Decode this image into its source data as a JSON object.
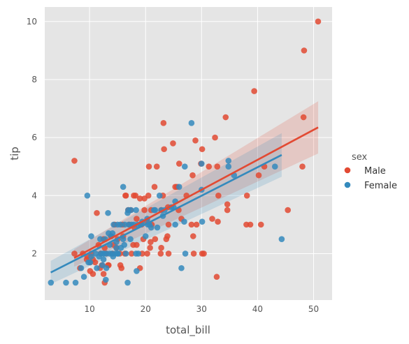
{
  "chart_data": {
    "type": "scatter",
    "style": "ggplot",
    "xlabel": "total_bill",
    "ylabel": "tip",
    "xlim": [
      2.0,
      53.3
    ],
    "ylim": [
      0.4,
      10.5
    ],
    "xticks": [
      10,
      20,
      30,
      40,
      50
    ],
    "yticks": [
      2,
      4,
      6,
      8,
      10
    ],
    "grid": true,
    "legend": {
      "title": "sex",
      "placement": "right-outside",
      "entries": [
        "Male",
        "Female"
      ]
    },
    "colors": {
      "Male": "#E24A33",
      "Female": "#348ABD",
      "panel": "#E5E5E5",
      "grid": "#FFFFFF",
      "text": "#555555"
    },
    "series": [
      {
        "name": "Male",
        "points": [
          [
            50.8,
            10.0
          ],
          [
            48.3,
            9.0
          ],
          [
            39.4,
            7.6
          ],
          [
            48.2,
            6.7
          ],
          [
            34.3,
            6.7
          ],
          [
            23.2,
            6.5
          ],
          [
            28.9,
            5.9
          ],
          [
            24.9,
            5.8
          ],
          [
            32.4,
            6.0
          ],
          [
            23.3,
            5.6
          ],
          [
            30.1,
            5.6
          ],
          [
            7.3,
            5.2
          ],
          [
            26.0,
            5.1
          ],
          [
            29.9,
            5.1
          ],
          [
            20.6,
            5.0
          ],
          [
            22.0,
            5.0
          ],
          [
            31.3,
            5.0
          ],
          [
            32.8,
            5.0
          ],
          [
            41.2,
            5.0
          ],
          [
            48.0,
            5.0
          ],
          [
            28.4,
            4.7
          ],
          [
            25.3,
            4.3
          ],
          [
            25.6,
            4.3
          ],
          [
            21.6,
            4.3
          ],
          [
            16.4,
            4.0
          ],
          [
            17.9,
            4.0
          ],
          [
            18.2,
            4.0
          ],
          [
            20.5,
            4.0
          ],
          [
            23.1,
            4.0
          ],
          [
            16.5,
            4.0
          ],
          [
            27.3,
            4.0
          ],
          [
            33.0,
            4.0
          ],
          [
            38.1,
            4.0
          ],
          [
            40.2,
            4.7
          ],
          [
            19.8,
            3.9
          ],
          [
            19.0,
            3.9
          ],
          [
            34.6,
            3.7
          ],
          [
            17.3,
            3.5
          ],
          [
            22.8,
            3.5
          ],
          [
            45.4,
            3.5
          ],
          [
            34.6,
            3.5
          ],
          [
            21.0,
            3.5
          ],
          [
            24.0,
            3.6
          ],
          [
            25.9,
            3.5
          ],
          [
            19.8,
            3.5
          ],
          [
            26.4,
            3.2
          ],
          [
            18.4,
            3.2
          ],
          [
            20.3,
            3.1
          ],
          [
            15.9,
            3.0
          ],
          [
            17.1,
            3.0
          ],
          [
            19.3,
            3.0
          ],
          [
            21.1,
            3.0
          ],
          [
            24.1,
            3.0
          ],
          [
            28.2,
            3.0
          ],
          [
            29.1,
            3.0
          ],
          [
            38.0,
            3.0
          ],
          [
            38.7,
            3.0
          ],
          [
            40.6,
            3.0
          ],
          [
            32.9,
            3.1
          ],
          [
            31.9,
            3.2
          ],
          [
            11.3,
            3.4
          ],
          [
            14.5,
            3.0
          ],
          [
            13.8,
            2.6
          ],
          [
            16.0,
            2.6
          ],
          [
            12.5,
            2.5
          ],
          [
            15.0,
            2.5
          ],
          [
            19.6,
            2.5
          ],
          [
            21.7,
            2.5
          ],
          [
            23.7,
            2.5
          ],
          [
            28.5,
            2.6
          ],
          [
            17.8,
            2.3
          ],
          [
            18.4,
            2.3
          ],
          [
            12.7,
            2.2
          ],
          [
            14.8,
            2.2
          ],
          [
            20.8,
            2.2
          ],
          [
            22.8,
            2.2
          ],
          [
            10.3,
            2.0
          ],
          [
            12.0,
            2.0
          ],
          [
            13.0,
            2.0
          ],
          [
            14.1,
            2.0
          ],
          [
            15.4,
            2.0
          ],
          [
            16.3,
            2.0
          ],
          [
            17.5,
            2.0
          ],
          [
            19.4,
            2.0
          ],
          [
            20.3,
            2.0
          ],
          [
            22.7,
            2.0
          ],
          [
            24.1,
            2.0
          ],
          [
            28.6,
            2.0
          ],
          [
            30.1,
            2.0
          ],
          [
            30.4,
            2.0
          ],
          [
            7.3,
            2.0
          ],
          [
            8.8,
            2.0
          ],
          [
            9.6,
            1.9
          ],
          [
            10.6,
            1.8
          ],
          [
            11.0,
            1.7
          ],
          [
            12.2,
            1.6
          ],
          [
            13.4,
            1.6
          ],
          [
            15.5,
            1.6
          ],
          [
            15.7,
            1.5
          ],
          [
            19.0,
            1.5
          ],
          [
            8.3,
            1.5
          ],
          [
            9.5,
            1.8
          ],
          [
            10.1,
            1.4
          ],
          [
            10.6,
            1.3
          ],
          [
            11.9,
            1.5
          ],
          [
            12.5,
            1.3
          ],
          [
            13.3,
            1.6
          ],
          [
            12.7,
            1.0
          ],
          [
            32.7,
            1.2
          ],
          [
            10.1,
            1.7
          ],
          [
            11.6,
            2.3
          ],
          [
            14.3,
            2.3
          ],
          [
            16.9,
            3.5
          ],
          [
            18.0,
            2.9
          ],
          [
            20.9,
            2.4
          ],
          [
            23.9,
            2.6
          ]
        ]
      },
      {
        "name": "Female",
        "points": [
          [
            3.1,
            1.0
          ],
          [
            5.8,
            1.0
          ],
          [
            7.5,
            1.0
          ],
          [
            16.8,
            1.0
          ],
          [
            12.9,
            1.1
          ],
          [
            8.5,
            1.5
          ],
          [
            9.0,
            1.2
          ],
          [
            18.4,
            1.4
          ],
          [
            26.4,
            1.5
          ],
          [
            13.0,
            1.5
          ],
          [
            11.3,
            1.5
          ],
          [
            9.8,
            1.7
          ],
          [
            10.3,
            1.9
          ],
          [
            12.5,
            1.8
          ],
          [
            14.2,
            1.9
          ],
          [
            15.0,
            2.0
          ],
          [
            16.5,
            2.0
          ],
          [
            18.3,
            2.0
          ],
          [
            27.1,
            2.0
          ],
          [
            30.1,
            3.1
          ],
          [
            44.3,
            2.5
          ],
          [
            43.1,
            5.0
          ],
          [
            34.8,
            5.2
          ],
          [
            35.8,
            4.7
          ],
          [
            30.0,
            4.2
          ],
          [
            28.2,
            6.5
          ],
          [
            27.0,
            5.0
          ],
          [
            30.0,
            5.1
          ],
          [
            34.8,
            5.0
          ],
          [
            26.0,
            4.3
          ],
          [
            25.0,
            3.6
          ],
          [
            22.5,
            4.0
          ],
          [
            21.7,
            3.5
          ],
          [
            16.0,
            4.3
          ],
          [
            9.6,
            4.0
          ],
          [
            13.3,
            3.4
          ],
          [
            16.9,
            3.5
          ],
          [
            17.4,
            3.5
          ],
          [
            18.3,
            3.5
          ],
          [
            19.1,
            3.0
          ],
          [
            20.3,
            3.2
          ],
          [
            21.0,
            2.9
          ],
          [
            22.1,
            2.9
          ],
          [
            22.8,
            3.5
          ],
          [
            23.1,
            3.3
          ],
          [
            24.6,
            3.6
          ],
          [
            25.3,
            3.8
          ],
          [
            26.9,
            3.1
          ],
          [
            14.3,
            3.0
          ],
          [
            15.0,
            3.0
          ],
          [
            15.5,
            3.0
          ],
          [
            16.3,
            3.0
          ],
          [
            17.0,
            3.0
          ],
          [
            17.5,
            3.0
          ],
          [
            18.6,
            3.0
          ],
          [
            20.7,
            3.0
          ],
          [
            13.4,
            2.7
          ],
          [
            12.8,
            2.5
          ],
          [
            13.9,
            2.6
          ],
          [
            10.3,
            2.6
          ],
          [
            11.9,
            2.5
          ],
          [
            13.6,
            2.3
          ],
          [
            14.8,
            2.4
          ],
          [
            16.0,
            2.5
          ],
          [
            17.3,
            2.5
          ],
          [
            12.0,
            2.0
          ],
          [
            12.4,
            2.0
          ],
          [
            13.0,
            2.0
          ],
          [
            13.6,
            2.0
          ],
          [
            14.0,
            2.0
          ],
          [
            14.6,
            2.0
          ],
          [
            15.1,
            2.0
          ],
          [
            11.1,
            2.0
          ],
          [
            12.6,
            2.0
          ],
          [
            10.1,
            1.7
          ],
          [
            11.7,
            1.9
          ],
          [
            12.3,
            1.6
          ],
          [
            14.8,
            2.2
          ],
          [
            16.2,
            2.3
          ],
          [
            20.4,
            3.0
          ],
          [
            17.9,
            3.0
          ],
          [
            19.4,
            3.1
          ],
          [
            21.5,
            3.5
          ],
          [
            23.4,
            3.5
          ],
          [
            18.7,
            2.0
          ],
          [
            15.6,
            2.2
          ],
          [
            14.1,
            2.7
          ],
          [
            16.8,
            3.4
          ],
          [
            20.0,
            2.6
          ],
          [
            25.3,
            3.0
          ]
        ]
      }
    ],
    "fits": [
      {
        "name": "Male",
        "x": [
          7.25,
          50.81
        ],
        "y": [
          1.85,
          6.35
        ],
        "ci_low": [
          1.55,
          5.45
        ],
        "ci_high": [
          2.15,
          7.25
        ]
      },
      {
        "name": "Female",
        "x": [
          3.07,
          44.3
        ],
        "y": [
          1.35,
          5.4
        ],
        "ci_low": [
          0.95,
          4.65
        ],
        "ci_high": [
          1.75,
          6.15
        ]
      }
    ]
  }
}
